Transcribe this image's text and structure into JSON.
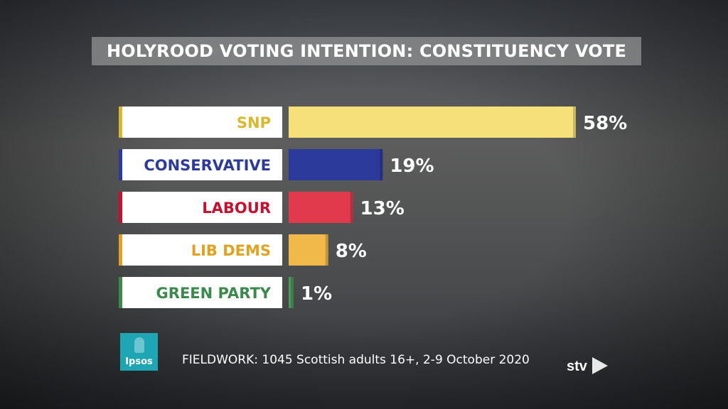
{
  "title": "HOLYROOD VOTING INTENTION: CONSTITUENCY VOTE",
  "footer": {
    "fieldwork": "FIELDWORK: 1045 Scottish adults 16+, 2-9 October 2020",
    "pollster_logo": "Ipsos",
    "broadcaster_logo": "stv"
  },
  "chart_data": {
    "type": "bar",
    "orientation": "horizontal",
    "title": "HOLYROOD VOTING INTENTION: CONSTITUENCY VOTE",
    "categories": [
      "SNP",
      "CONSERVATIVE",
      "LABOUR",
      "LIB DEMS",
      "GREEN PARTY"
    ],
    "values": [
      58,
      19,
      13,
      8,
      1
    ],
    "value_labels": [
      "58%",
      "19%",
      "13%",
      "8%",
      "1%"
    ],
    "colors": [
      "#f5e07a",
      "#2b3a9b",
      "#e03a4c",
      "#f0b94a",
      "#4a9a5c"
    ],
    "label_colors": [
      "#d9b82a",
      "#2b3a9b",
      "#c8102e",
      "#e0a21f",
      "#3a8a4c"
    ],
    "unit": "%"
  }
}
